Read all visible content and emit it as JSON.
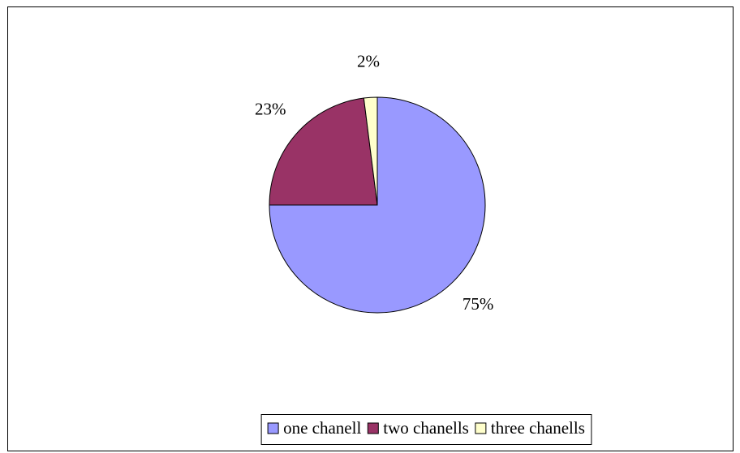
{
  "chart_data": {
    "type": "pie",
    "categories": [
      "one chanell",
      "two chanells",
      "three chanells"
    ],
    "values": [
      75,
      23,
      2
    ],
    "value_labels": [
      "75%",
      "23%",
      "2%"
    ],
    "colors": [
      "#9999ff",
      "#993366",
      "#ffffcc"
    ],
    "legend": "bottom"
  }
}
